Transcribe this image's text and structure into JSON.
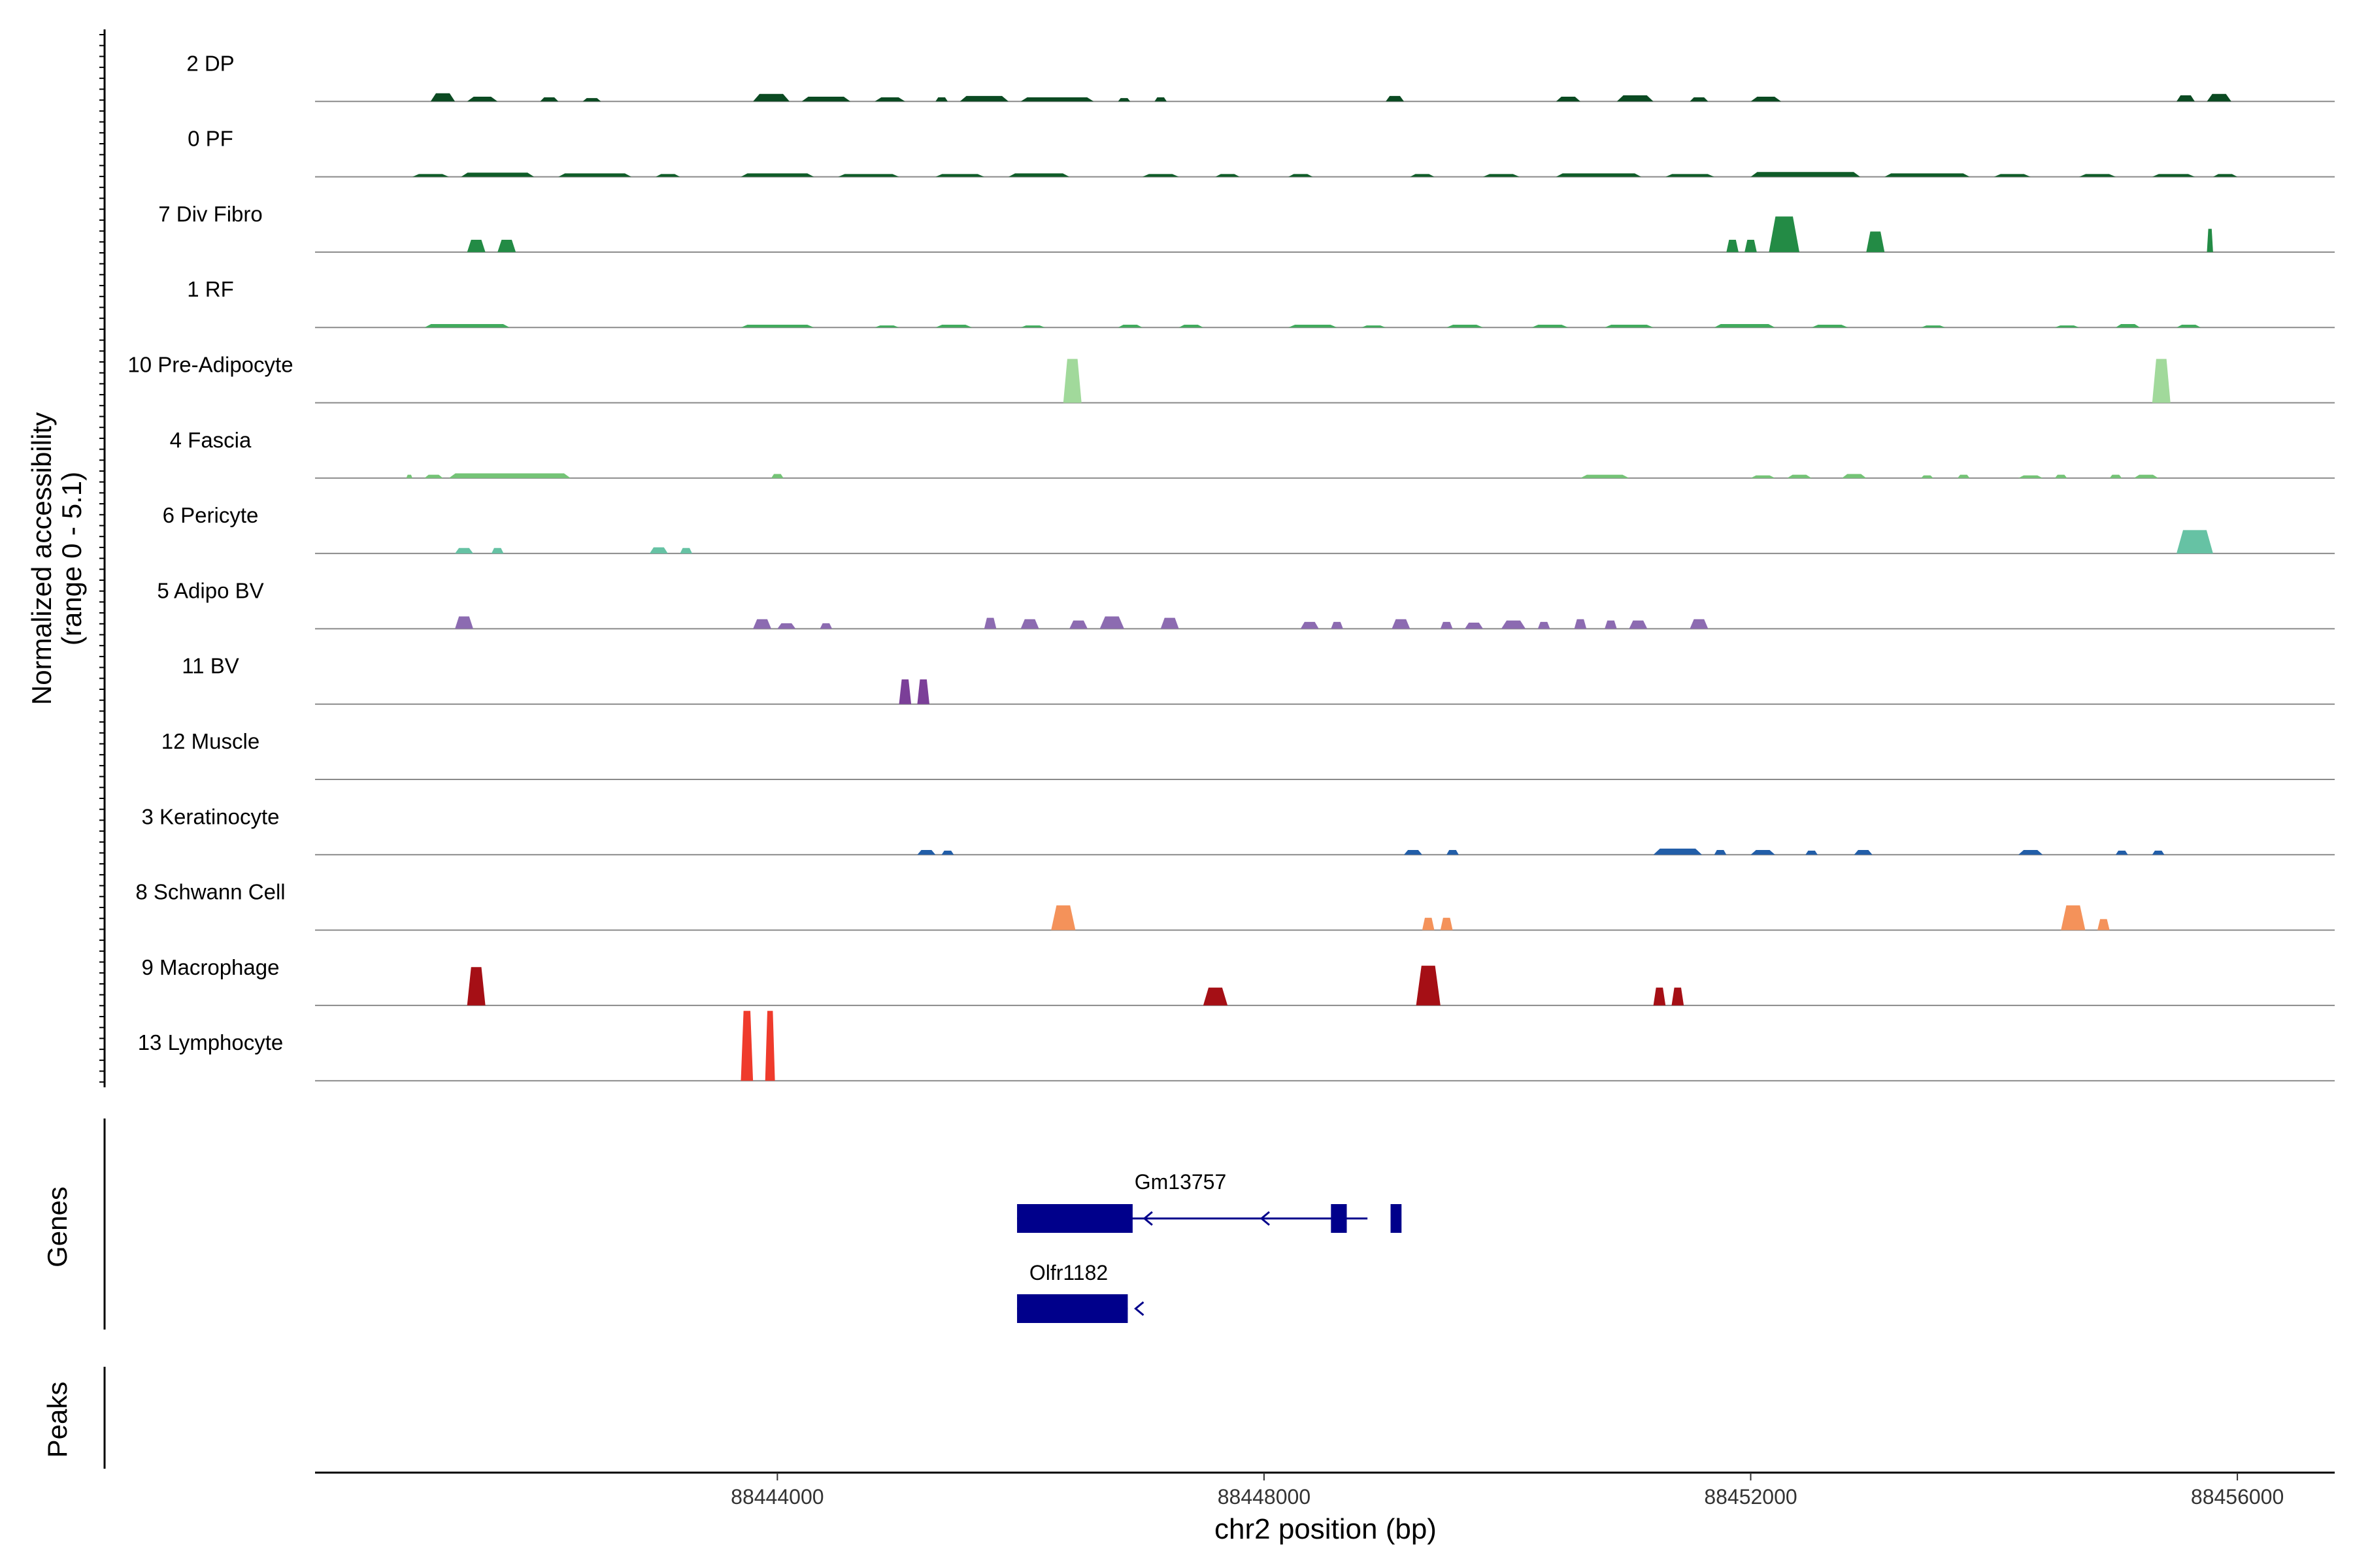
{
  "chart_data": {
    "type": "genome-track",
    "title": "",
    "xlabel": "chr2 position (bp)",
    "ylabel": [
      "Normalized accessibility",
      "(range 0 - 5.1)"
    ],
    "y_range": [
      0,
      5.1
    ],
    "xlim": [
      88440200,
      88456800
    ],
    "x_ticks": [
      88444000,
      88448000,
      88452000,
      88456000
    ],
    "x_tick_labels": [
      "88444000",
      "88448000",
      "88452000",
      "88456000"
    ],
    "side_labels": {
      "genes": "Genes",
      "peaks": "Peaks"
    },
    "tracks": [
      {
        "name": "2 DP",
        "color": "#0b4a22",
        "peaks": [
          [
            88441150,
            88441350,
            0.6
          ],
          [
            88441450,
            88441700,
            0.35
          ],
          [
            88442050,
            88442200,
            0.3
          ],
          [
            88442400,
            88442550,
            0.25
          ],
          [
            88443800,
            88444100,
            0.55
          ],
          [
            88444200,
            88444600,
            0.35
          ],
          [
            88444800,
            88445050,
            0.3
          ],
          [
            88445300,
            88445400,
            0.3
          ],
          [
            88445500,
            88445900,
            0.4
          ],
          [
            88446000,
            88446600,
            0.3
          ],
          [
            88446800,
            88446900,
            0.25
          ],
          [
            88447100,
            88447200,
            0.3
          ],
          [
            88449000,
            88449150,
            0.4
          ],
          [
            88450400,
            88450600,
            0.35
          ],
          [
            88450900,
            88451200,
            0.45
          ],
          [
            88451500,
            88451650,
            0.3
          ],
          [
            88452000,
            88452250,
            0.35
          ],
          [
            88455500,
            88455650,
            0.45
          ],
          [
            88455750,
            88455950,
            0.55
          ]
        ]
      },
      {
        "name": "0 PF",
        "color": "#0f5c28",
        "peaks": [
          [
            88441000,
            88441300,
            0.2
          ],
          [
            88441400,
            88442000,
            0.3
          ],
          [
            88442200,
            88442800,
            0.25
          ],
          [
            88443000,
            88443200,
            0.2
          ],
          [
            88443700,
            88444300,
            0.25
          ],
          [
            88444500,
            88445000,
            0.2
          ],
          [
            88445300,
            88445700,
            0.2
          ],
          [
            88445900,
            88446400,
            0.25
          ],
          [
            88447000,
            88447300,
            0.2
          ],
          [
            88447600,
            88447800,
            0.2
          ],
          [
            88448200,
            88448400,
            0.2
          ],
          [
            88449200,
            88449400,
            0.2
          ],
          [
            88449800,
            88450100,
            0.2
          ],
          [
            88450400,
            88451100,
            0.25
          ],
          [
            88451300,
            88451700,
            0.2
          ],
          [
            88452000,
            88452900,
            0.35
          ],
          [
            88453100,
            88453800,
            0.25
          ],
          [
            88454000,
            88454300,
            0.2
          ],
          [
            88454700,
            88455000,
            0.2
          ],
          [
            88455300,
            88455650,
            0.2
          ],
          [
            88455800,
            88456000,
            0.2
          ]
        ]
      },
      {
        "name": "7 Div Fibro",
        "color": "#238b45",
        "peaks": [
          [
            88441450,
            88441600,
            0.9
          ],
          [
            88441700,
            88441850,
            0.9
          ],
          [
            88451800,
            88451900,
            0.9
          ],
          [
            88451950,
            88452050,
            0.9
          ],
          [
            88452150,
            88452400,
            2.6
          ],
          [
            88452950,
            88453100,
            1.5
          ],
          [
            88455750,
            88455800,
            1.7
          ]
        ]
      },
      {
        "name": "1 RF",
        "color": "#41ab5d",
        "peaks": [
          [
            88441100,
            88441800,
            0.25
          ],
          [
            88443700,
            88444300,
            0.2
          ],
          [
            88444800,
            88445000,
            0.15
          ],
          [
            88445300,
            88445600,
            0.2
          ],
          [
            88446000,
            88446200,
            0.15
          ],
          [
            88446800,
            88447000,
            0.2
          ],
          [
            88447300,
            88447500,
            0.2
          ],
          [
            88448200,
            88448600,
            0.2
          ],
          [
            88448800,
            88449000,
            0.15
          ],
          [
            88449500,
            88449800,
            0.2
          ],
          [
            88450200,
            88450500,
            0.2
          ],
          [
            88450800,
            88451200,
            0.2
          ],
          [
            88451700,
            88452200,
            0.25
          ],
          [
            88452500,
            88452800,
            0.2
          ],
          [
            88453400,
            88453600,
            0.15
          ],
          [
            88454500,
            88454700,
            0.15
          ],
          [
            88455000,
            88455200,
            0.25
          ],
          [
            88455500,
            88455700,
            0.2
          ]
        ]
      },
      {
        "name": "10 Pre-Adipocyte",
        "color": "#a1d99b",
        "peaks": [
          [
            88446350,
            88446500,
            3.2
          ],
          [
            88455300,
            88455450,
            3.2
          ]
        ]
      },
      {
        "name": "4 Fascia",
        "color": "#74c476",
        "peaks": [
          [
            88440950,
            88441000,
            0.25
          ],
          [
            88441100,
            88441250,
            0.25
          ],
          [
            88441300,
            88442300,
            0.35
          ],
          [
            88443950,
            88444050,
            0.3
          ],
          [
            88450600,
            88451000,
            0.25
          ],
          [
            88452000,
            88452200,
            0.2
          ],
          [
            88452300,
            88452500,
            0.25
          ],
          [
            88452750,
            88452950,
            0.3
          ],
          [
            88453400,
            88453500,
            0.2
          ],
          [
            88453700,
            88453800,
            0.25
          ],
          [
            88454200,
            88454400,
            0.2
          ],
          [
            88454500,
            88454600,
            0.25
          ],
          [
            88454950,
            88455050,
            0.25
          ],
          [
            88455150,
            88455350,
            0.25
          ]
        ]
      },
      {
        "name": "6 Pericyte",
        "color": "#66c2a4",
        "peaks": [
          [
            88441350,
            88441500,
            0.4
          ],
          [
            88441650,
            88441750,
            0.4
          ],
          [
            88442950,
            88443100,
            0.45
          ],
          [
            88443200,
            88443300,
            0.4
          ],
          [
            88455500,
            88455800,
            1.7
          ]
        ]
      },
      {
        "name": "5 Adipo BV",
        "color": "#8c6bb1",
        "peaks": [
          [
            88441350,
            88441500,
            0.9
          ],
          [
            88443800,
            88443950,
            0.7
          ],
          [
            88444000,
            88444150,
            0.4
          ],
          [
            88444350,
            88444450,
            0.4
          ],
          [
            88445700,
            88445800,
            0.8
          ],
          [
            88446000,
            88446150,
            0.7
          ],
          [
            88446400,
            88446550,
            0.6
          ],
          [
            88446650,
            88446850,
            0.9
          ],
          [
            88447150,
            88447300,
            0.8
          ],
          [
            88448300,
            88448450,
            0.5
          ],
          [
            88448550,
            88448650,
            0.5
          ],
          [
            88449050,
            88449200,
            0.7
          ],
          [
            88449450,
            88449550,
            0.5
          ],
          [
            88449650,
            88449800,
            0.45
          ],
          [
            88449950,
            88450150,
            0.6
          ],
          [
            88450250,
            88450350,
            0.5
          ],
          [
            88450550,
            88450650,
            0.7
          ],
          [
            88450800,
            88450900,
            0.6
          ],
          [
            88451000,
            88451150,
            0.6
          ],
          [
            88451500,
            88451650,
            0.7
          ]
        ]
      },
      {
        "name": "11 BV",
        "color": "#7b3f98",
        "peaks": [
          [
            88445000,
            88445100,
            1.8
          ],
          [
            88445150,
            88445250,
            1.8
          ]
        ]
      },
      {
        "name": "12 Muscle",
        "color": "#4a3b8c",
        "peaks": []
      },
      {
        "name": "3 Keratinocyte",
        "color": "#225ea8",
        "peaks": [
          [
            88445150,
            88445300,
            0.35
          ],
          [
            88445350,
            88445450,
            0.3
          ],
          [
            88449150,
            88449300,
            0.35
          ],
          [
            88449500,
            88449600,
            0.35
          ],
          [
            88451200,
            88451600,
            0.45
          ],
          [
            88451700,
            88451800,
            0.35
          ],
          [
            88452000,
            88452200,
            0.35
          ],
          [
            88452450,
            88452550,
            0.3
          ],
          [
            88452850,
            88453000,
            0.35
          ],
          [
            88454200,
            88454400,
            0.35
          ],
          [
            88455000,
            88455100,
            0.3
          ],
          [
            88455300,
            88455400,
            0.3
          ]
        ]
      },
      {
        "name": "8 Schwann Cell",
        "color": "#f4925a",
        "peaks": [
          [
            88446250,
            88446450,
            1.8
          ],
          [
            88449300,
            88449400,
            0.9
          ],
          [
            88449450,
            88449550,
            0.9
          ],
          [
            88454550,
            88454750,
            1.8
          ],
          [
            88454850,
            88454950,
            0.8
          ]
        ]
      },
      {
        "name": "9 Macrophage",
        "color": "#a50f15",
        "peaks": [
          [
            88441450,
            88441600,
            2.8
          ],
          [
            88447500,
            88447700,
            1.3
          ],
          [
            88449250,
            88449450,
            2.9
          ],
          [
            88451200,
            88451300,
            1.3
          ],
          [
            88451350,
            88451450,
            1.3
          ]
        ]
      },
      {
        "name": "13 Lymphocyte",
        "color": "#ef3b2c",
        "peaks": [
          [
            88443700,
            88443800,
            5.1
          ],
          [
            88443900,
            88443980,
            5.1
          ]
        ]
      }
    ],
    "genes": [
      {
        "name": "Gm13757",
        "color": "#00008b",
        "strand": "-",
        "start": 88445970,
        "end": 88448850,
        "exons": [
          [
            88445970,
            88446920
          ],
          [
            88448550,
            88448680
          ],
          [
            88449040,
            88449130
          ]
        ]
      },
      {
        "name": "Olfr1182",
        "color": "#00008b",
        "strand": "-",
        "start": 88445970,
        "end": 88446880,
        "exons": [
          [
            88445970,
            88446880
          ]
        ]
      }
    ]
  }
}
